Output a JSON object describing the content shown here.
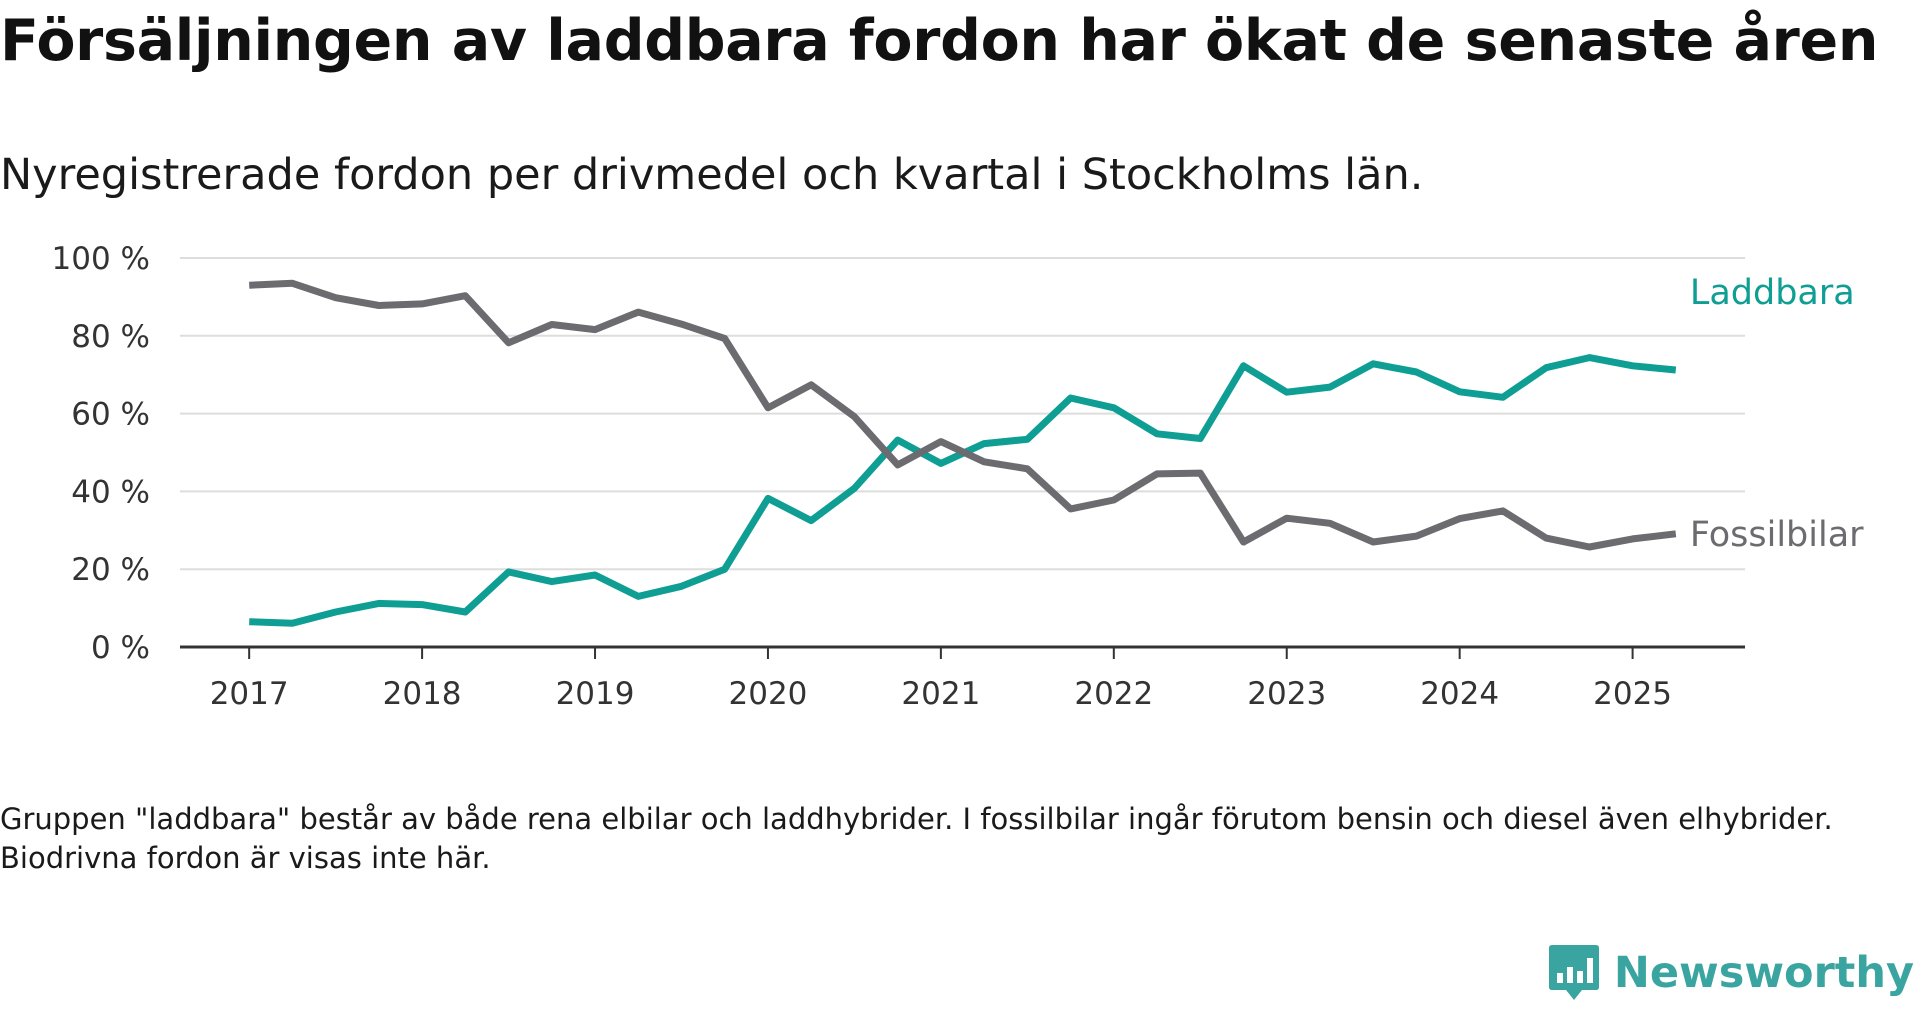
{
  "header": {
    "title": "Försäljningen av laddbara fordon har ökat de senaste åren",
    "subtitle": "Nyregistrerade fordon per drivmedel och kvartal i Stockholms län."
  },
  "footer": {
    "note": "Gruppen \"laddbara\" består av både rena elbilar och laddhybrider. I fossilbilar ingår förutom bensin och diesel även elhybrider. Biodrivna fordon är visas inte här.",
    "brand": "Newsworthy",
    "brand_color": "#3aa5a0"
  },
  "chart_data": {
    "type": "line",
    "title": "Försäljningen av laddbara fordon har ökat de senaste åren",
    "subtitle": "Nyregistrerade fordon per drivmedel och kvartal i Stockholms län.",
    "xlabel": "",
    "ylabel": "",
    "x": [
      2017.0,
      2017.25,
      2017.5,
      2017.75,
      2018.0,
      2018.25,
      2018.5,
      2018.75,
      2019.0,
      2019.25,
      2019.5,
      2019.75,
      2020.0,
      2020.25,
      2020.5,
      2020.75,
      2021.0,
      2021.25,
      2021.5,
      2021.75,
      2022.0,
      2022.25,
      2022.5,
      2022.75,
      2023.0,
      2023.25,
      2023.5,
      2023.75,
      2024.0,
      2024.25,
      2024.5,
      2024.75,
      2025.0,
      2025.25
    ],
    "xlim": [
      2016.6,
      2025.65
    ],
    "x_ticks": [
      2017,
      2018,
      2019,
      2020,
      2021,
      2022,
      2023,
      2024,
      2025
    ],
    "x_tick_labels": [
      "2017",
      "2018",
      "2019",
      "2020",
      "2021",
      "2022",
      "2023",
      "2024",
      "2025"
    ],
    "ylim": [
      0,
      100
    ],
    "y_ticks": [
      0,
      20,
      40,
      60,
      80,
      100
    ],
    "y_tick_labels": [
      "0 %",
      "20 %",
      "40 %",
      "60 %",
      "80 %",
      "100 %"
    ],
    "grid": "horizontal",
    "legend": "direct labels at line ends",
    "series": [
      {
        "name": "Laddbara",
        "color": "#0f9e93",
        "values": [
          6.5,
          6.1,
          9.0,
          11.2,
          10.9,
          9.0,
          19.3,
          16.8,
          18.5,
          13.0,
          15.6,
          20.0,
          38.2,
          32.5,
          40.8,
          53.2,
          47.2,
          52.3,
          53.4,
          64.0,
          61.5,
          54.8,
          53.6,
          72.3,
          65.5,
          66.8,
          72.8,
          70.7,
          65.6,
          64.2,
          71.8,
          74.4,
          72.3,
          71.2
        ]
      },
      {
        "name": "Fossilbilar",
        "color": "#6b6b70",
        "values": [
          93.0,
          93.5,
          89.8,
          87.8,
          88.2,
          90.3,
          78.2,
          82.9,
          81.6,
          86.1,
          83.0,
          79.3,
          61.5,
          67.4,
          59.2,
          46.8,
          52.8,
          47.6,
          45.8,
          35.5,
          37.8,
          44.5,
          44.7,
          27.0,
          33.1,
          31.8,
          27.0,
          28.5,
          33.0,
          35.0,
          28.0,
          25.7,
          27.8,
          29.1
        ]
      }
    ]
  }
}
